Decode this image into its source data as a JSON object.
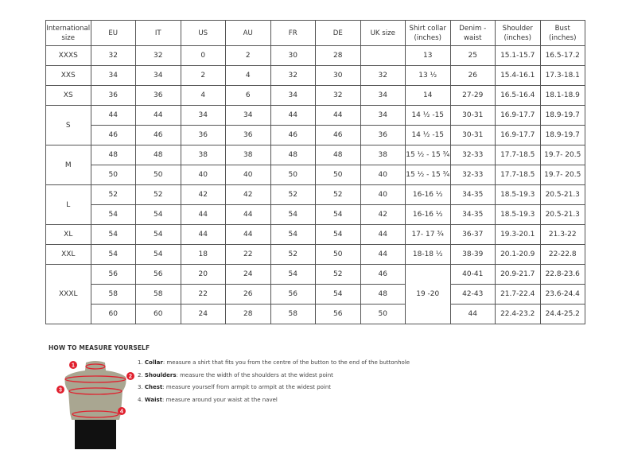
{
  "headers": [
    "International size",
    "EU",
    "IT",
    "US",
    "AU",
    "FR",
    "DE",
    "UK size",
    "Shirt collar (inches)",
    "Denim - waist",
    "Shoulder (inches)",
    "Bust (inches)"
  ],
  "groups": [
    {
      "size": "XXXS",
      "rows": [
        [
          "32",
          "32",
          "0",
          "2",
          "30",
          "28",
          "",
          "13",
          "25",
          "15.1-15.7",
          "16.5-17.2"
        ]
      ]
    },
    {
      "size": "XXS",
      "rows": [
        [
          "34",
          "34",
          "2",
          "4",
          "32",
          "30",
          "32",
          "13 ½",
          "26",
          "15.4-16.1",
          "17.3-18.1"
        ]
      ]
    },
    {
      "size": "XS",
      "rows": [
        [
          "36",
          "36",
          "4",
          "6",
          "34",
          "32",
          "34",
          "14",
          "27-29",
          "16.5-16.4",
          "18.1-18.9"
        ]
      ]
    },
    {
      "size": "S",
      "rows": [
        [
          "44",
          "44",
          "34",
          "34",
          "44",
          "44",
          "34",
          "14 ½ -15",
          "30-31",
          "16.9-17.7",
          "18.9-19.7"
        ],
        [
          "46",
          "46",
          "36",
          "36",
          "46",
          "46",
          "36",
          "14 ½ -15",
          "30-31",
          "16.9-17.7",
          "18.9-19.7"
        ]
      ]
    },
    {
      "size": "M",
      "rows": [
        [
          "48",
          "48",
          "38",
          "38",
          "48",
          "48",
          "38",
          "15 ½ - 15 ¾",
          "32-33",
          "17.7-18.5",
          "19.7- 20.5"
        ],
        [
          "50",
          "50",
          "40",
          "40",
          "50",
          "50",
          "40",
          "15 ½ - 15 ¾",
          "32-33",
          "17.7-18.5",
          "19.7- 20.5"
        ]
      ]
    },
    {
      "size": "L",
      "rows": [
        [
          "52",
          "52",
          "42",
          "42",
          "52",
          "52",
          "40",
          "16-16 ½",
          "34-35",
          "18.5-19.3",
          "20.5-21.3"
        ],
        [
          "54",
          "54",
          "44",
          "44",
          "54",
          "54",
          "42",
          "16-16 ½",
          "34-35",
          "18.5-19.3",
          "20.5-21.3"
        ]
      ]
    },
    {
      "size": "XL",
      "rows": [
        [
          "54",
          "54",
          "44",
          "44",
          "54",
          "54",
          "44",
          "17- 17 ¾",
          "36-37",
          "19.3-20.1",
          "21.3-22"
        ]
      ]
    },
    {
      "size": "XXL",
      "rows": [
        [
          "54",
          "54",
          "18",
          "22",
          "52",
          "50",
          "44",
          "18-18 ½",
          "38-39",
          "20.1-20.9",
          "22-22.8"
        ]
      ]
    },
    {
      "size": "XXXL",
      "collar_merged": "19 -20",
      "rows": [
        [
          "56",
          "56",
          "20",
          "24",
          "54",
          "52",
          "46",
          null,
          "40-41",
          "20.9-21.7",
          "22.8-23.6"
        ],
        [
          "58",
          "58",
          "22",
          "26",
          "56",
          "54",
          "48",
          null,
          "42-43",
          "21.7-22.4",
          "23.6-24.4"
        ],
        [
          "60",
          "60",
          "24",
          "28",
          "58",
          "56",
          "50",
          null,
          "44",
          "22.4-23.2",
          "24.4-25.2"
        ]
      ]
    }
  ],
  "howto": {
    "title": "HOW TO MEASURE YOURSELF",
    "steps": [
      {
        "num": "1.",
        "term": "Collar",
        "text": ": measure a shirt that fits you from the centre of the button to the end of the buttonhole"
      },
      {
        "num": "2.",
        "term": "Shoulders",
        "text": ": measure the width of the shoulders at the widest point"
      },
      {
        "num": "3.",
        "term": "Chest",
        "text": ": measure yourself from armpit to armpit at the widest point"
      },
      {
        "num": "4.",
        "term": "Waist",
        "text": ": measure around your waist at the navel"
      }
    ],
    "markers": [
      "1",
      "2",
      "3",
      "4"
    ]
  },
  "colors": {
    "marker": "#e0202e",
    "torso": "#a9a691",
    "shorts": "#111111"
  }
}
